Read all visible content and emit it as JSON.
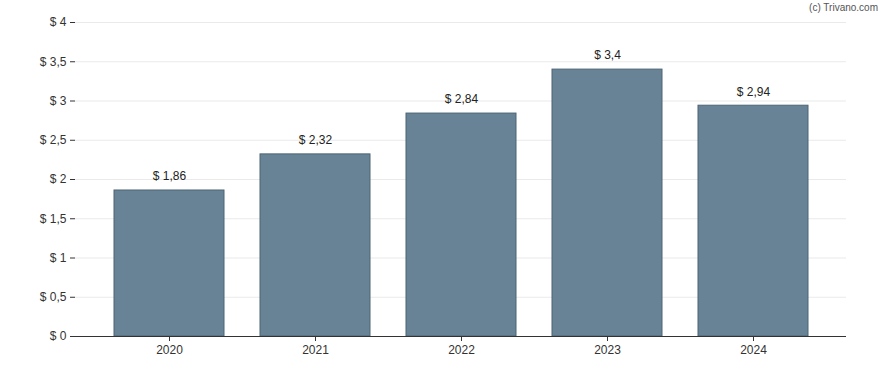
{
  "chart_data": {
    "type": "bar",
    "caption": "(c) Trivano.com",
    "categories": [
      "2020",
      "2021",
      "2022",
      "2023",
      "2024"
    ],
    "values": [
      1.86,
      2.32,
      2.84,
      3.4,
      2.94
    ],
    "value_labels": [
      "$ 1,86",
      "$ 2,32",
      "$ 2,84",
      "$ 3,4",
      "$ 2,94"
    ],
    "data_labels": true,
    "color": "#678395",
    "ylim": [
      0,
      4
    ],
    "yticks": [
      {
        "value": 0,
        "label": "$ 0"
      },
      {
        "value": 0.5,
        "label": "$ 0,5"
      },
      {
        "value": 1,
        "label": "$ 1"
      },
      {
        "value": 1.5,
        "label": "$ 1,5"
      },
      {
        "value": 2,
        "label": "$ 2"
      },
      {
        "value": 2.5,
        "label": "$ 2,5"
      },
      {
        "value": 3,
        "label": "$ 3"
      },
      {
        "value": 3.5,
        "label": "$ 3,5"
      },
      {
        "value": 4,
        "label": "$ 4"
      }
    ],
    "grid": true
  }
}
